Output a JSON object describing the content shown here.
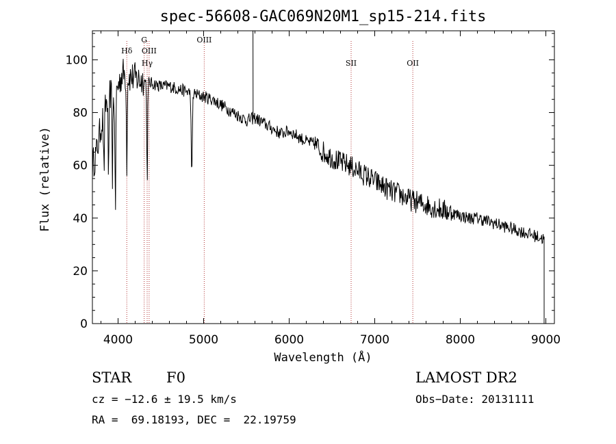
{
  "chart_data": {
    "type": "line",
    "title": "spec-56608-GAC069N20M1_sp15-214.fits",
    "xlabel": "Wavelength (Å)",
    "ylabel": "Flux (relative)",
    "xlim": [
      3700,
      9100
    ],
    "ylim": [
      0,
      111
    ],
    "xticks": [
      4000,
      5000,
      6000,
      7000,
      8000,
      9000
    ],
    "yticks": [
      0,
      20,
      40,
      60,
      80,
      100
    ],
    "spectrum_anchors": {
      "x": [
        3700,
        3750,
        3800,
        3850,
        3900,
        3950,
        4000,
        4050,
        4100,
        4200,
        4300,
        4400,
        4500,
        4600,
        4700,
        4800,
        4900,
        5000,
        5100,
        5200,
        5300,
        5400,
        5500,
        5600,
        5700,
        5800,
        5900,
        6000,
        6100,
        6200,
        6300,
        6400,
        6500,
        6600,
        6700,
        6800,
        6900,
        7000,
        7100,
        7200,
        7300,
        7400,
        7500,
        7600,
        7700,
        7800,
        7900,
        8000,
        8100,
        8200,
        8300,
        8400,
        8500,
        8600,
        8700,
        8800,
        8900,
        8980
      ],
      "y": [
        60,
        65,
        75,
        82,
        88,
        85,
        90,
        95,
        94,
        93,
        92,
        91,
        90,
        90,
        89,
        88,
        87,
        86,
        85,
        83,
        81,
        79,
        77,
        78,
        76,
        74,
        72,
        73,
        71,
        69,
        68,
        65,
        63,
        61,
        60,
        58,
        56,
        54,
        52,
        50,
        49,
        47,
        46,
        45,
        44,
        43,
        42,
        41,
        40,
        40,
        39,
        38,
        37,
        36,
        35,
        34,
        33,
        32
      ]
    },
    "absorption_lines": [
      {
        "x": 3835,
        "depth": 22,
        "width": 8
      },
      {
        "x": 3889,
        "depth": 32,
        "width": 8
      },
      {
        "x": 3934,
        "depth": 30,
        "width": 6
      },
      {
        "x": 3968,
        "depth": 45,
        "width": 7
      },
      {
        "x": 4102,
        "depth": 33,
        "width": 7
      },
      {
        "x": 4340,
        "depth": 38,
        "width": 7
      },
      {
        "x": 4861,
        "depth": 33,
        "width": 9
      }
    ],
    "emission_spike": {
      "x": 5577,
      "y": 111
    },
    "line_markers": [
      {
        "x": 4102,
        "label": "Hδ",
        "row": 1
      },
      {
        "x": 4305,
        "label": "G",
        "row": 0
      },
      {
        "x": 4340,
        "label": "Hγ",
        "row": 2
      },
      {
        "x": 4363,
        "label": "OIII",
        "row": 1
      },
      {
        "x": 5007,
        "label": "OIII",
        "row": 0
      },
      {
        "x": 6724,
        "label": "SII",
        "row": 2
      },
      {
        "x": 7445,
        "label": "OII",
        "row": 2
      }
    ],
    "noise_scale": 2.4
  },
  "info": {
    "object_class": "STAR",
    "subclass": "F0",
    "survey": "LAMOST DR2",
    "cz": "cz = −12.6 ± 19.5 km/s",
    "obs_date": "Obs−Date: 20131111",
    "radec": "RA =  69.18193, DEC =  22.19759"
  }
}
